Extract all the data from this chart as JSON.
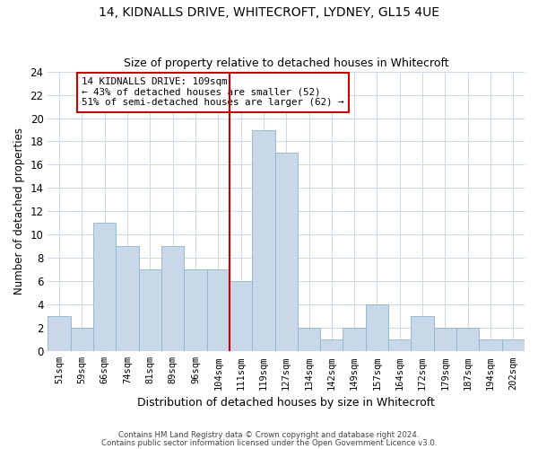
{
  "title1": "14, KIDNALLS DRIVE, WHITECROFT, LYDNEY, GL15 4UE",
  "title2": "Size of property relative to detached houses in Whitecroft",
  "xlabel": "Distribution of detached houses by size in Whitecroft",
  "ylabel": "Number of detached properties",
  "categories": [
    "51sqm",
    "59sqm",
    "66sqm",
    "74sqm",
    "81sqm",
    "89sqm",
    "96sqm",
    "104sqm",
    "111sqm",
    "119sqm",
    "127sqm",
    "134sqm",
    "142sqm",
    "149sqm",
    "157sqm",
    "164sqm",
    "172sqm",
    "179sqm",
    "187sqm",
    "194sqm",
    "202sqm"
  ],
  "values": [
    3,
    2,
    11,
    9,
    7,
    9,
    7,
    7,
    6,
    19,
    17,
    2,
    1,
    2,
    4,
    1,
    3,
    2,
    2,
    1,
    1
  ],
  "bar_color": "#c8d8e8",
  "bar_edgecolor": "#8ab4cc",
  "reference_line_color": "#cc0000",
  "annotation_text": "14 KIDNALLS DRIVE: 109sqm\n← 43% of detached houses are smaller (52)\n51% of semi-detached houses are larger (62) →",
  "annotation_box_color": "#cc0000",
  "ylim": [
    0,
    24
  ],
  "yticks": [
    0,
    2,
    4,
    6,
    8,
    10,
    12,
    14,
    16,
    18,
    20,
    22,
    24
  ],
  "footer1": "Contains HM Land Registry data © Crown copyright and database right 2024.",
  "footer2": "Contains public sector information licensed under the Open Government Licence v3.0.",
  "bg_color": "#ffffff",
  "grid_color": "#ccd8e4"
}
